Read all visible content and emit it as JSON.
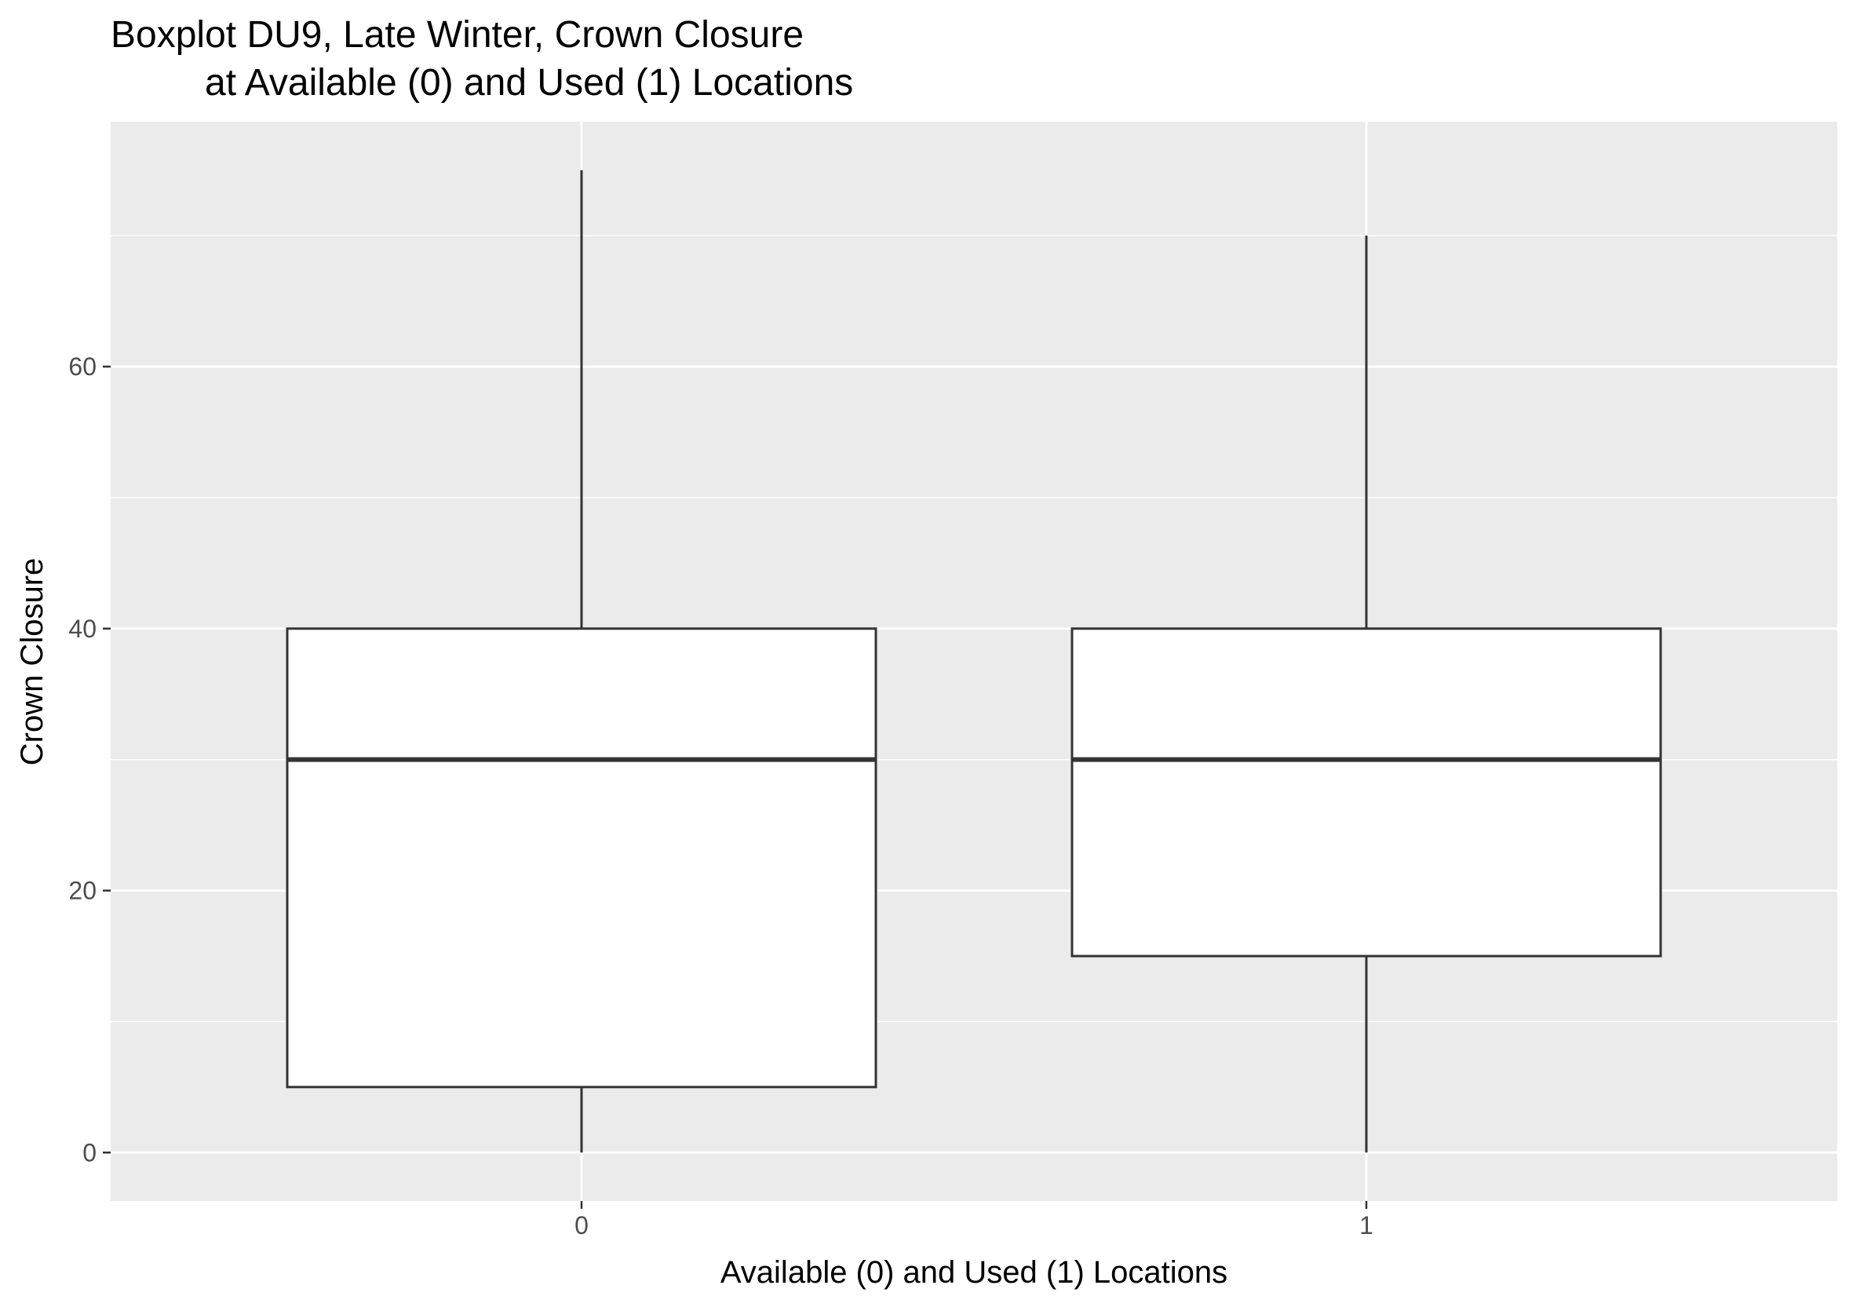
{
  "chart_data": {
    "type": "boxplot",
    "title": [
      "Boxplot DU9, Late Winter, Crown Closure",
      "at Available (0) and Used (1) Locations"
    ],
    "xlabel": "Available (0) and Used (1) Locations",
    "ylabel": "Crown Closure",
    "categories": [
      "0",
      "1"
    ],
    "y_ticks": [
      0,
      20,
      40,
      60
    ],
    "ylim": [
      -3.7,
      78.7
    ],
    "grid": true,
    "colors": {
      "panel": "#ebebeb",
      "grid": "#ffffff",
      "box_fill": "#ffffff",
      "box_line": "#333333",
      "tick_label": "#4d4d4d"
    },
    "boxes": [
      {
        "category": "0",
        "min": 0,
        "q1": 5,
        "median": 30,
        "q3": 40,
        "max": 75
      },
      {
        "category": "1",
        "min": 0,
        "q1": 15,
        "median": 30,
        "q3": 40,
        "max": 70
      }
    ]
  }
}
